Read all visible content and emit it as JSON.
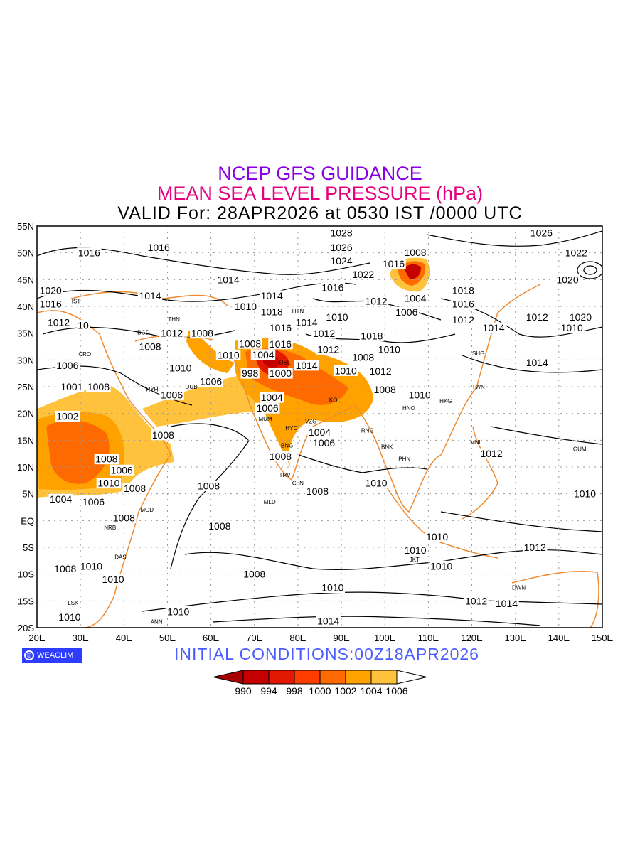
{
  "title": {
    "line1": "NCEP GFS GUIDANCE",
    "line2": "MEAN SEA LEVEL PRESSURE (hPa)",
    "line3": "VALID For: 28APR2026 at 0530 IST /0000 UTC"
  },
  "logo": {
    "symbol": "©",
    "text": "WEACLIM"
  },
  "initial_conditions": "INITIAL CONDITIONS:00Z18APR2026",
  "axes": {
    "lon_labels": [
      "20E",
      "30E",
      "40E",
      "50E",
      "60E",
      "70E",
      "80E",
      "90E",
      "100E",
      "110E",
      "120E",
      "130E",
      "140E",
      "150E"
    ],
    "lat_labels": [
      "55N",
      "50N",
      "45N",
      "40N",
      "35N",
      "30N",
      "25N",
      "20N",
      "15N",
      "10N",
      "5N",
      "EQ",
      "5S",
      "10S",
      "15S",
      "20S"
    ],
    "lon_range": [
      20,
      150
    ],
    "lat_range": [
      -20,
      55
    ]
  },
  "legend": {
    "labels": [
      "990",
      "994",
      "998",
      "1000",
      "1002",
      "1004",
      "1006"
    ],
    "colors": [
      "#a80000",
      "#c40000",
      "#e21800",
      "#ff3c00",
      "#ff6a00",
      "#ffa200",
      "#ffc23c",
      "#ffffff"
    ]
  },
  "contour_labels": [
    {
      "t": "1028",
      "lon": 90,
      "lat": 54
    },
    {
      "t": "1026",
      "lon": 90,
      "lat": 51
    },
    {
      "t": "1024",
      "lon": 90,
      "lat": 48.5
    },
    {
      "t": "1022",
      "lon": 95,
      "lat": 46
    },
    {
      "t": "1016",
      "lon": 102,
      "lat": 48
    },
    {
      "t": "1008",
      "lon": 107,
      "lat": 49
    },
    {
      "t": "1026",
      "lon": 136,
      "lat": 54.5
    },
    {
      "t": "1022",
      "lon": 144,
      "lat": 50
    },
    {
      "t": "1020",
      "lon": 142,
      "lat": 45
    },
    {
      "t": "1018",
      "lon": 118,
      "lat": 43
    },
    {
      "t": "1016",
      "lon": 118,
      "lat": 40.5
    },
    {
      "t": "1004",
      "lon": 107,
      "lat": 41.5
    },
    {
      "t": "1006",
      "lon": 105,
      "lat": 40
    },
    {
      "t": "1012",
      "lon": 118,
      "lat": 37.5
    },
    {
      "t": "1014",
      "lon": 125,
      "lat": 36
    },
    {
      "t": "1012",
      "lon": 135,
      "lat": 38
    },
    {
      "t": "1020",
      "lon": 145,
      "lat": 38
    },
    {
      "t": "1010",
      "lon": 143,
      "lat": 36
    },
    {
      "t": "1014",
      "lon": 135,
      "lat": 29.5
    },
    {
      "t": "1016",
      "lon": 32,
      "lat": 50
    },
    {
      "t": "1016",
      "lon": 48,
      "lat": 51
    },
    {
      "t": "1014",
      "lon": 64,
      "lat": 45
    },
    {
      "t": "1014",
      "lon": 46,
      "lat": 42
    },
    {
      "t": "1014",
      "lon": 74,
      "lat": 42
    },
    {
      "t": "1010",
      "lon": 68,
      "lat": 40
    },
    {
      "t": "1016",
      "lon": 88,
      "lat": 43.5
    },
    {
      "t": "1012",
      "lon": 98,
      "lat": 41
    },
    {
      "t": "1010",
      "lon": 89,
      "lat": 38
    },
    {
      "t": "1018",
      "lon": 74,
      "lat": 39
    },
    {
      "t": "1016",
      "lon": 76,
      "lat": 36
    },
    {
      "t": "1014",
      "lon": 82,
      "lat": 37
    },
    {
      "t": "1012",
      "lon": 86,
      "lat": 36
    },
    {
      "t": "1016",
      "lon": 76,
      "lat": 33
    },
    {
      "t": "1012",
      "lon": 87,
      "lat": 32
    },
    {
      "t": "1018",
      "lon": 97,
      "lat": 34.5
    },
    {
      "t": "1010",
      "lon": 101,
      "lat": 32
    },
    {
      "t": "1008",
      "lon": 95,
      "lat": 30.5
    },
    {
      "t": "1012",
      "lon": 99,
      "lat": 29
    },
    {
      "t": "1010",
      "lon": 91,
      "lat": 28
    },
    {
      "t": "1014",
      "lon": 82,
      "lat": 29
    },
    {
      "t": "1004",
      "lon": 72,
      "lat": 31
    },
    {
      "t": "1008",
      "lon": 69,
      "lat": 32
    },
    {
      "t": "1010",
      "lon": 64,
      "lat": 32
    },
    {
      "t": "1012",
      "lon": 51,
      "lat": 35
    },
    {
      "t": "1008",
      "lon": 58,
      "lat": 35
    },
    {
      "t": "1008",
      "lon": 46,
      "lat": 32.5
    },
    {
      "t": "1010",
      "lon": 53,
      "lat": 28.5
    },
    {
      "t": "998",
      "lon": 69,
      "lat": 27.5
    },
    {
      "t": "1000",
      "lon": 76,
      "lat": 27.5
    },
    {
      "t": "1006",
      "lon": 60,
      "lat": 26
    },
    {
      "t": "1006",
      "lon": 51,
      "lat": 23.5
    },
    {
      "t": "1008",
      "lon": 100,
      "lat": 24.5
    },
    {
      "t": "1010",
      "lon": 108,
      "lat": 23.5
    },
    {
      "t": "1004",
      "lon": 74,
      "lat": 23
    },
    {
      "t": "1006",
      "lon": 73,
      "lat": 21
    },
    {
      "t": "1004",
      "lon": 85,
      "lat": 16.5
    },
    {
      "t": "1006",
      "lon": 86,
      "lat": 14.5
    },
    {
      "t": "1008",
      "lon": 49,
      "lat": 16
    },
    {
      "t": "1020",
      "lon": 20,
      "lat": 43
    },
    {
      "t": "1016",
      "lon": 22,
      "lat": 41.5
    },
    {
      "t": "1012",
      "lon": 25,
      "lat": 37
    },
    {
      "t": "10",
      "lon": 29,
      "lat": 36.5
    },
    {
      "t": "1006",
      "lon": 27,
      "lat": 29
    },
    {
      "t": "1001",
      "lon": 28,
      "lat": 25
    },
    {
      "t": "1008",
      "lon": 32.5,
      "lat": 25
    },
    {
      "t": "1002",
      "lon": 27,
      "lat": 19.5
    },
    {
      "t": "1008",
      "lon": 36,
      "lat": 11.5
    },
    {
      "t": "1006",
      "lon": 39.5,
      "lat": 10.5
    },
    {
      "t": "1010",
      "lon": 36.5,
      "lat": 7
    },
    {
      "t": "1008",
      "lon": 42.5,
      "lat": 6
    },
    {
      "t": "1004",
      "lon": 25.5,
      "lat": 4
    },
    {
      "t": "1006",
      "lon": 33,
      "lat": 3.5
    },
    {
      "t": "1008",
      "lon": 40,
      "lat": 0.5
    },
    {
      "t": "1008",
      "lon": 59.5,
      "lat": 6.5
    },
    {
      "t": "1008",
      "lon": 62,
      "lat": -1
    },
    {
      "t": "1008",
      "lon": 76,
      "lat": 12
    },
    {
      "t": "1008",
      "lon": 84.5,
      "lat": 5.5
    },
    {
      "t": "1010",
      "lon": 98,
      "lat": 7
    },
    {
      "t": "1012",
      "lon": 124.5,
      "lat": 12.5
    },
    {
      "t": "1010",
      "lon": 146,
      "lat": 5
    },
    {
      "t": "1010",
      "lon": 112,
      "lat": -3
    },
    {
      "t": "1010",
      "lon": 107,
      "lat": -5.5
    },
    {
      "t": "1010",
      "lon": 113,
      "lat": -8.5
    },
    {
      "t": "1012",
      "lon": 134.5,
      "lat": -5
    },
    {
      "t": "1008",
      "lon": 26.5,
      "lat": -9
    },
    {
      "t": "1010",
      "lon": 32.5,
      "lat": -8.5
    },
    {
      "t": "1010",
      "lon": 37.5,
      "lat": -11
    },
    {
      "t": "1008",
      "lon": 70,
      "lat": -10
    },
    {
      "t": "1010",
      "lon": 88,
      "lat": -12.5
    },
    {
      "t": "1012",
      "lon": 121,
      "lat": -15
    },
    {
      "t": "1014",
      "lon": 128,
      "lat": -15.5
    },
    {
      "t": "1010",
      "lon": 52.5,
      "lat": -17
    },
    {
      "t": "1010",
      "lon": 27.5,
      "lat": -18
    },
    {
      "t": "1014",
      "lon": 87,
      "lat": -19
    }
  ],
  "cities": [
    {
      "t": "IST",
      "lon": 29,
      "lat": 41
    },
    {
      "t": "CRO",
      "lon": 31,
      "lat": 30
    },
    {
      "t": "BGD",
      "lon": 44.5,
      "lat": 33
    },
    {
      "t": "THN",
      "lon": 51.5,
      "lat": 35.5
    },
    {
      "t": "RYH",
      "lon": 46.5,
      "lat": 24.5
    },
    {
      "t": "DUB",
      "lon": 55.5,
      "lat": 25
    },
    {
      "t": "HTN",
      "lon": 80,
      "lat": 37
    },
    {
      "t": "DEL",
      "lon": 77,
      "lat": 28.5
    },
    {
      "t": "KOL",
      "lon": 88.5,
      "lat": 22.5
    },
    {
      "t": "MUM",
      "lon": 72.5,
      "lat": 19
    },
    {
      "t": "HYD",
      "lon": 78.5,
      "lat": 17.3
    },
    {
      "t": "VZG",
      "lon": 83,
      "lat": 17.5
    },
    {
      "t": "BNG",
      "lon": 77.5,
      "lat": 13
    },
    {
      "t": "TRV",
      "lon": 77,
      "lat": 8.5
    },
    {
      "t": "CLN",
      "lon": 80,
      "lat": 7
    },
    {
      "t": "MLD",
      "lon": 73.5,
      "lat": 3.5
    },
    {
      "t": "RNG",
      "lon": 96,
      "lat": 16.8
    },
    {
      "t": "BNK",
      "lon": 100.5,
      "lat": 13.8
    },
    {
      "t": "HNO",
      "lon": 105.5,
      "lat": 21
    },
    {
      "t": "HKG",
      "lon": 114,
      "lat": 22.3
    },
    {
      "t": "PHN",
      "lon": 104.5,
      "lat": 11.5
    },
    {
      "t": "SHG",
      "lon": 121.5,
      "lat": 31.2
    },
    {
      "t": "TWN",
      "lon": 121.5,
      "lat": 25
    },
    {
      "t": "MNL",
      "lon": 121,
      "lat": 14.6
    },
    {
      "t": "GUM",
      "lon": 144.8,
      "lat": 13.4
    },
    {
      "t": "MGD",
      "lon": 45.3,
      "lat": 2
    },
    {
      "t": "NRB",
      "lon": 36.8,
      "lat": -1.3
    },
    {
      "t": "DAS",
      "lon": 39.2,
      "lat": -6.8
    },
    {
      "t": "JKT",
      "lon": 106.8,
      "lat": -6.2
    },
    {
      "t": "DWN",
      "lon": 130.8,
      "lat": -12.5
    },
    {
      "t": "LSK",
      "lon": 28.3,
      "lat": -15.4
    },
    {
      "t": "ANN",
      "lon": 47.5,
      "lat": -18.9
    }
  ]
}
